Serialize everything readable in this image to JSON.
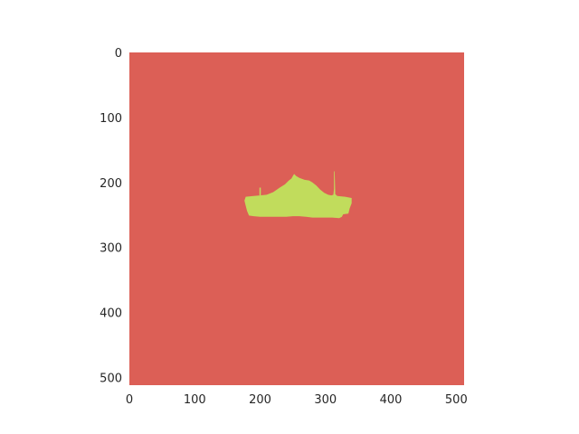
{
  "chart_data": {
    "type": "heatmap",
    "title": "",
    "xlabel": "",
    "ylabel": "",
    "xlim": [
      0,
      512
    ],
    "ylim": [
      512,
      0
    ],
    "grid": false,
    "legend": "none",
    "x_ticks": [
      {
        "value": 0,
        "label": "0"
      },
      {
        "value": 100,
        "label": "100"
      },
      {
        "value": 200,
        "label": "200"
      },
      {
        "value": 300,
        "label": "300"
      },
      {
        "value": 400,
        "label": "400"
      },
      {
        "value": 500,
        "label": "500"
      }
    ],
    "y_ticks": [
      {
        "value": 0,
        "label": "0"
      },
      {
        "value": 100,
        "label": "100"
      },
      {
        "value": 200,
        "label": "200"
      },
      {
        "value": 300,
        "label": "300"
      },
      {
        "value": 400,
        "label": "400"
      },
      {
        "value": 500,
        "label": "500"
      }
    ],
    "colors": {
      "background_class": "#dc5f56",
      "object_class": "#c1dc5c"
    },
    "object_region": {
      "class": "object_class",
      "outline": [
        [
          178,
          222
        ],
        [
          190,
          221
        ],
        [
          200,
          220
        ],
        [
          210,
          219
        ],
        [
          220,
          215
        ],
        [
          230,
          208
        ],
        [
          238,
          203
        ],
        [
          244,
          197
        ],
        [
          248,
          194
        ],
        [
          250,
          190
        ],
        [
          252,
          187
        ],
        [
          255,
          190
        ],
        [
          260,
          193
        ],
        [
          268,
          196
        ],
        [
          275,
          197
        ],
        [
          280,
          200
        ],
        [
          286,
          205
        ],
        [
          292,
          211
        ],
        [
          298,
          216
        ],
        [
          304,
          219
        ],
        [
          309,
          220
        ],
        [
          312,
          219
        ],
        [
          313,
          210
        ],
        [
          313,
          183
        ],
        [
          314,
          183
        ],
        [
          315,
          218
        ],
        [
          318,
          221
        ],
        [
          330,
          222
        ],
        [
          340,
          224
        ],
        [
          340,
          232
        ],
        [
          337,
          240
        ],
        [
          335,
          248
        ],
        [
          327,
          249
        ],
        [
          325,
          253
        ],
        [
          321,
          255
        ],
        [
          310,
          254
        ],
        [
          300,
          254
        ],
        [
          290,
          254
        ],
        [
          280,
          254
        ],
        [
          270,
          253
        ],
        [
          260,
          252
        ],
        [
          250,
          252
        ],
        [
          240,
          253
        ],
        [
          230,
          253
        ],
        [
          220,
          253
        ],
        [
          210,
          253
        ],
        [
          200,
          253
        ],
        [
          190,
          252
        ],
        [
          183,
          251
        ],
        [
          180,
          244
        ],
        [
          178,
          236
        ],
        [
          176,
          228
        ]
      ],
      "spikes": [
        {
          "x": 200,
          "y_top": 208,
          "y_base": 220
        }
      ]
    }
  }
}
